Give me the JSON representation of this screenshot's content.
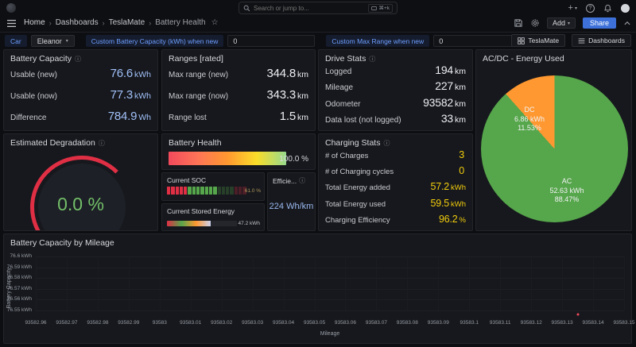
{
  "topnav": {
    "search_placeholder": "Search or jump to...",
    "search_shortcut": "⌘+k",
    "breadcrumb": [
      "Home",
      "Dashboards",
      "TeslaMate",
      "Battery Health"
    ],
    "add_label": "Add",
    "share_label": "Share"
  },
  "variables": {
    "car_label": "Car",
    "car_value": "Eleanor",
    "custom_capacity_label": "Custom Battery Capacity (kWh) when new",
    "custom_capacity_value": "0",
    "custom_range_label": "Custom Max Range when new",
    "custom_range_value": "0",
    "teslamate_button": "TeslaMate",
    "dashboards_button": "Dashboards"
  },
  "colors": {
    "accent_blue": "#3d71d9",
    "link_blue": "#6e9fff",
    "stat_blue": "#a1c0f8",
    "stat_white": "#eceef2",
    "stat_yellow": "#f2cc0c",
    "green": "#73bf69",
    "red": "#e02f44",
    "orange": "#ff9830",
    "pie_green": "#56a64b",
    "efficiency_blue": "#9bb9f0"
  },
  "panels": {
    "battery_capacity": {
      "title": "Battery Capacity",
      "rows": [
        {
          "label": "Usable (new)",
          "value": "76.6",
          "unit": "kWh"
        },
        {
          "label": "Usable (now)",
          "value": "77.3",
          "unit": "kWh"
        },
        {
          "label": "Difference",
          "value": "784.9",
          "unit": "Wh"
        }
      ]
    },
    "ranges": {
      "title": "Ranges [rated]",
      "rows": [
        {
          "label": "Max range (new)",
          "value": "344.8",
          "unit": "km"
        },
        {
          "label": "Max range (now)",
          "value": "343.3",
          "unit": "km"
        },
        {
          "label": "Range lost",
          "value": "1.5",
          "unit": "km"
        }
      ]
    },
    "drive_stats": {
      "title": "Drive Stats",
      "rows": [
        {
          "label": "Logged",
          "value": "194",
          "unit": "km"
        },
        {
          "label": "Mileage",
          "value": "227",
          "unit": "km"
        },
        {
          "label": "Odometer",
          "value": "93582",
          "unit": "km"
        },
        {
          "label": "Data lost (not logged)",
          "value": "33",
          "unit": "km"
        }
      ]
    },
    "charging_stats": {
      "title": "Charging Stats",
      "rows": [
        {
          "label": "# of Charges",
          "value": "3",
          "unit": ""
        },
        {
          "label": "# of Charging cycles",
          "value": "0",
          "unit": ""
        },
        {
          "label": "Total Energy added",
          "value": "57.2",
          "unit": "kWh"
        },
        {
          "label": "Total Energy used",
          "value": "59.5",
          "unit": "kWh"
        },
        {
          "label": "Charging Efficiency",
          "value": "96.2",
          "unit": "%"
        }
      ]
    },
    "efficiency": {
      "title": "Efficie...",
      "value": "224 Wh/km"
    }
  },
  "chart_data": [
    {
      "type": "pie",
      "title": "AC/DC - Energy Used",
      "slices": [
        {
          "label": "AC",
          "value_kwh": 52.63,
          "percent": 88.47,
          "value_text": "52.63 kWh",
          "percent_text": "88.47%",
          "color": "#56a64b"
        },
        {
          "label": "DC",
          "value_kwh": 6.86,
          "percent": 11.53,
          "value_text": "6.86 kWh",
          "percent_text": "11.53%",
          "color": "#ff9830"
        }
      ],
      "labels_inside": true
    },
    {
      "type": "gauge",
      "title": "Estimated Degradation",
      "value": 0.0,
      "unit": "%",
      "value_text": "0.0 %",
      "min": 0,
      "max": 100,
      "value_color": "#73bf69",
      "arc_colors": [
        "#73bf69",
        "#fade2a",
        "#e02f44"
      ]
    },
    {
      "type": "bar",
      "title": "Battery Health",
      "value": 100.0,
      "unit": "%",
      "value_text": "100.0 %",
      "min": 0,
      "max": 100,
      "gradient": [
        "#f2495c",
        "#ff7557",
        "#ff9830",
        "#fade2a",
        "#96d98d"
      ]
    },
    {
      "type": "bar",
      "title": "Current SOC",
      "value": 61.0,
      "unit": "%",
      "value_text": "61.0 %",
      "style": "lcd",
      "cells": [
        {
          "color": "#e02f44",
          "lit": true
        },
        {
          "color": "#e02f44",
          "lit": true
        },
        {
          "color": "#e02f44",
          "lit": true
        },
        {
          "color": "#e02f44",
          "lit": true
        },
        {
          "color": "#e02f44",
          "lit": true
        },
        {
          "color": "#56a64b",
          "lit": true
        },
        {
          "color": "#56a64b",
          "lit": true
        },
        {
          "color": "#56a64b",
          "lit": true
        },
        {
          "color": "#56a64b",
          "lit": true
        },
        {
          "color": "#56a64b",
          "lit": true
        },
        {
          "color": "#56a64b",
          "lit": true
        },
        {
          "color": "#56a64b",
          "lit": true
        },
        {
          "color": "#56a64b",
          "lit": false
        },
        {
          "color": "#56a64b",
          "lit": false
        },
        {
          "color": "#56a64b",
          "lit": false
        },
        {
          "color": "#56a64b",
          "lit": false
        },
        {
          "color": "#e02f44",
          "lit": false
        },
        {
          "color": "#e02f44",
          "lit": false
        },
        {
          "color": "#e02f44",
          "lit": false
        }
      ]
    },
    {
      "type": "bar",
      "title": "Current Stored Energy",
      "value": 47.2,
      "unit": "kWh",
      "value_text": "47.2 kWh",
      "fill_percent": 62,
      "gradient": [
        "#e02f44",
        "#56a64b",
        "#ff9830",
        "#ccd2f0"
      ]
    },
    {
      "type": "scatter",
      "title": "Battery Capacity by Mileage",
      "xlabel": "Mileage",
      "ylabel": "Battery Capacity",
      "x_ticks": [
        "93582.96",
        "93582.97",
        "93582.98",
        "93582.99",
        "93583",
        "93583.01",
        "93583.02",
        "93583.03",
        "93583.04",
        "93583.05",
        "93583.06",
        "93583.07",
        "93583.08",
        "93583.09",
        "93583.1",
        "93583.11",
        "93583.12",
        "93583.13",
        "93583.14",
        "93583.15"
      ],
      "y_ticks": [
        "76.6 kWh",
        "76.59 kWh",
        "76.58 kWh",
        "76.57 kWh",
        "76.56 kWh",
        "76.55 kWh"
      ],
      "y_tick_values": [
        76.6,
        76.59,
        76.58,
        76.57,
        76.56,
        76.55
      ],
      "x_range": [
        93582.96,
        93583.15
      ],
      "grid": true,
      "points": [
        {
          "x": 93583.135,
          "y": 76.546,
          "color": "#f2495c"
        }
      ]
    }
  ]
}
